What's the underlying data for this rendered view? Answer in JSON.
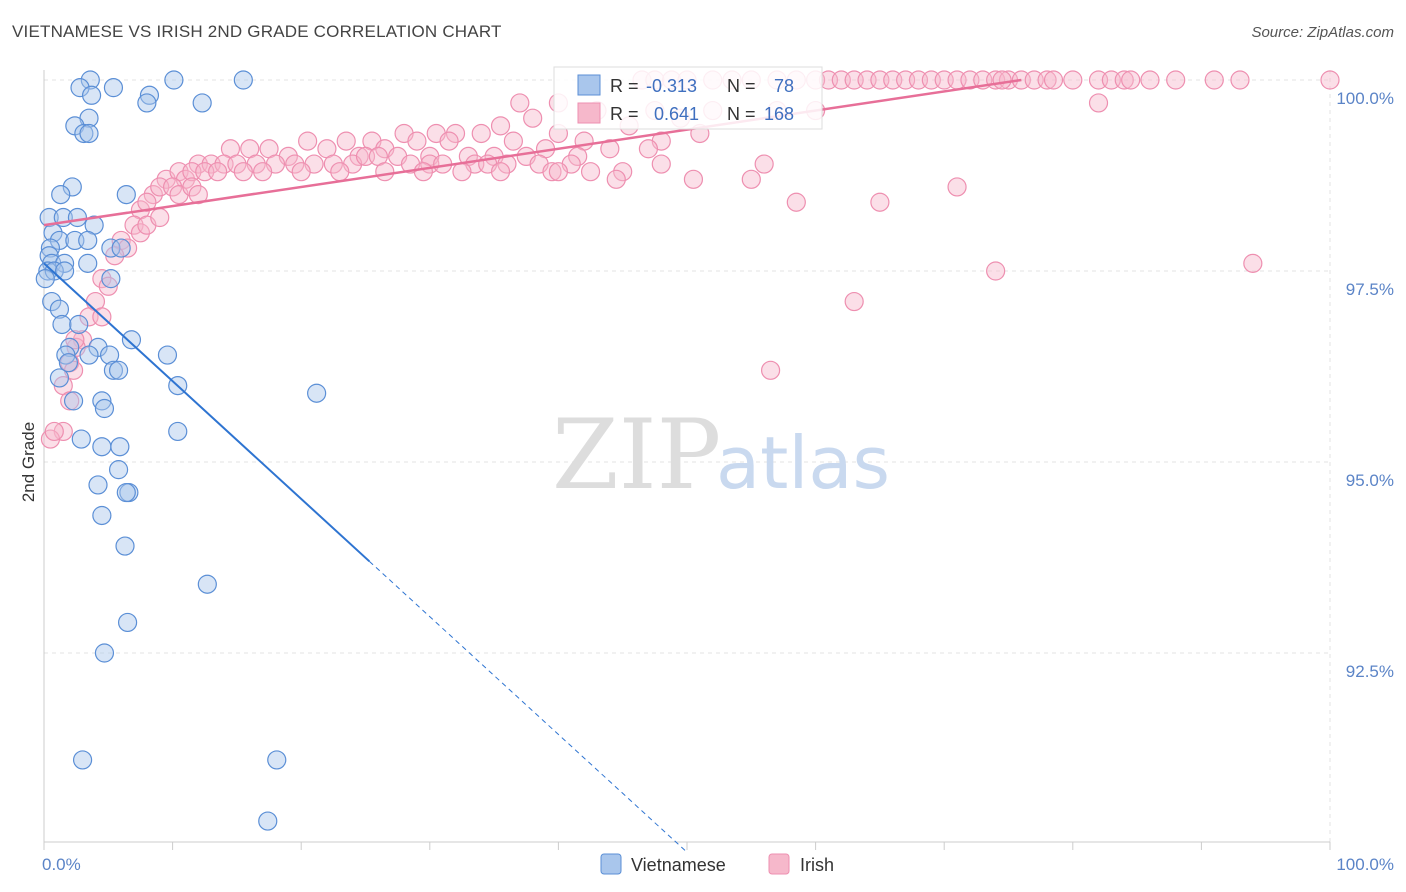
{
  "title": "VIETNAMESE VS IRISH 2ND GRADE CORRELATION CHART",
  "source": "Source: ZipAtlas.com",
  "watermark": {
    "part1": "ZIP",
    "part2": "atlas"
  },
  "colors": {
    "blue_fill": "#a9c6ec",
    "blue_stroke": "#5b8fd6",
    "blue_line": "#2e74d1",
    "pink_fill": "#f6b8cb",
    "pink_stroke": "#ee8fb0",
    "pink_line": "#e76f98",
    "grid": "#e3e3e3",
    "tick_text": "#5b84c7"
  },
  "legend": {
    "rows": [
      {
        "r_label": "R =",
        "r_value": "-0.313",
        "n_label": "N =",
        "n_value": "78"
      },
      {
        "r_label": "R =",
        "r_value": "0.641",
        "n_label": "N =",
        "n_value": "168"
      }
    ]
  },
  "chart_data": {
    "type": "scatter",
    "title": "VIETNAMESE VS IRISH 2ND GRADE CORRELATION CHART",
    "xlabel": "",
    "ylabel": "2nd Grade",
    "xlim": [
      0,
      100
    ],
    "ylim": [
      90.2,
      100.2
    ],
    "x_tick_labels": [
      "0.0%",
      "100.0%"
    ],
    "y_ticks": [
      92.5,
      95.0,
      97.5,
      100.0
    ],
    "y_tick_labels": [
      "92.5%",
      "95.0%",
      "97.5%",
      "100.0%"
    ],
    "legend_placement": "bottom-center",
    "series": [
      {
        "name": "Vietnamese",
        "r": -0.313,
        "n": 78,
        "trend": {
          "x0": 0,
          "y0": 97.6,
          "x1": 25.3,
          "y1": 93.7,
          "dashed_to_x": 50
        },
        "points": [
          [
            3.6,
            100
          ],
          [
            10.1,
            100
          ],
          [
            15.5,
            100
          ],
          [
            2.8,
            99.9
          ],
          [
            5.4,
            99.9
          ],
          [
            8.2,
            99.8
          ],
          [
            8.0,
            99.7
          ],
          [
            3.7,
            99.8
          ],
          [
            12.3,
            99.7
          ],
          [
            3.5,
            99.5
          ],
          [
            2.4,
            99.4
          ],
          [
            3.1,
            99.3
          ],
          [
            3.5,
            99.3
          ],
          [
            2.2,
            98.6
          ],
          [
            1.3,
            98.5
          ],
          [
            6.4,
            98.5
          ],
          [
            0.4,
            98.2
          ],
          [
            1.5,
            98.2
          ],
          [
            2.6,
            98.2
          ],
          [
            3.9,
            98.1
          ],
          [
            0.7,
            98.0
          ],
          [
            1.2,
            97.9
          ],
          [
            2.4,
            97.9
          ],
          [
            3.4,
            97.9
          ],
          [
            0.5,
            97.8
          ],
          [
            5.2,
            97.8
          ],
          [
            6.0,
            97.8
          ],
          [
            0.4,
            97.7
          ],
          [
            0.6,
            97.6
          ],
          [
            1.6,
            97.6
          ],
          [
            3.4,
            97.6
          ],
          [
            0.3,
            97.5
          ],
          [
            0.8,
            97.5
          ],
          [
            1.6,
            97.5
          ],
          [
            0.1,
            97.4
          ],
          [
            5.2,
            97.4
          ],
          [
            0.6,
            97.1
          ],
          [
            1.2,
            97.0
          ],
          [
            1.4,
            96.8
          ],
          [
            2.7,
            96.8
          ],
          [
            6.8,
            96.6
          ],
          [
            2.0,
            96.5
          ],
          [
            4.2,
            96.5
          ],
          [
            1.7,
            96.4
          ],
          [
            3.5,
            96.4
          ],
          [
            5.1,
            96.4
          ],
          [
            9.6,
            96.4
          ],
          [
            1.9,
            96.3
          ],
          [
            5.4,
            96.2
          ],
          [
            5.8,
            96.2
          ],
          [
            1.2,
            96.1
          ],
          [
            10.4,
            96.0
          ],
          [
            21.2,
            95.9
          ],
          [
            2.3,
            95.8
          ],
          [
            4.5,
            95.8
          ],
          [
            4.7,
            95.7
          ],
          [
            10.4,
            95.4
          ],
          [
            2.9,
            95.3
          ],
          [
            4.5,
            95.2
          ],
          [
            5.9,
            95.2
          ],
          [
            5.8,
            94.9
          ],
          [
            4.2,
            94.7
          ],
          [
            6.6,
            94.6
          ],
          [
            6.4,
            94.6
          ],
          [
            4.5,
            94.3
          ],
          [
            6.3,
            93.9
          ],
          [
            12.7,
            93.4
          ],
          [
            6.5,
            92.9
          ],
          [
            4.7,
            92.5
          ],
          [
            3.0,
            91.1
          ],
          [
            18.1,
            91.1
          ],
          [
            17.4,
            90.3
          ]
        ]
      },
      {
        "name": "Irish",
        "r": 0.641,
        "n": 168,
        "trend": {
          "x0": 0,
          "y0": 98.1,
          "x1": 76,
          "y1": 100.0
        },
        "points": [
          [
            46.5,
            100
          ],
          [
            47.5,
            100
          ],
          [
            48.8,
            100
          ],
          [
            50.0,
            100
          ],
          [
            52.0,
            100
          ],
          [
            53.5,
            100
          ],
          [
            55.0,
            100
          ],
          [
            57.0,
            100
          ],
          [
            58.5,
            100
          ],
          [
            60.0,
            100
          ],
          [
            61.0,
            100
          ],
          [
            62.0,
            100
          ],
          [
            63.0,
            100
          ],
          [
            64.0,
            100
          ],
          [
            65.0,
            100
          ],
          [
            66.0,
            100
          ],
          [
            67.0,
            100
          ],
          [
            68.0,
            100
          ],
          [
            69.0,
            100
          ],
          [
            70.0,
            100
          ],
          [
            71.0,
            100
          ],
          [
            72.0,
            100
          ],
          [
            73.0,
            100
          ],
          [
            74.0,
            100
          ],
          [
            75.0,
            100
          ],
          [
            76.0,
            100
          ],
          [
            77.0,
            100
          ],
          [
            78.0,
            100
          ],
          [
            80.0,
            100
          ],
          [
            82.0,
            100
          ],
          [
            83.0,
            100
          ],
          [
            84.0,
            100
          ],
          [
            86.0,
            100
          ],
          [
            88.0,
            100
          ],
          [
            91.0,
            100
          ],
          [
            93.0,
            100
          ],
          [
            100.0,
            100
          ],
          [
            74.5,
            100
          ],
          [
            78.5,
            100
          ],
          [
            84.5,
            100
          ],
          [
            37.0,
            99.7
          ],
          [
            40.0,
            99.7
          ],
          [
            43.0,
            99.6
          ],
          [
            47.5,
            99.6
          ],
          [
            52.0,
            99.6
          ],
          [
            57.0,
            99.6
          ],
          [
            60.0,
            99.6
          ],
          [
            82.0,
            99.7
          ],
          [
            35.5,
            99.4
          ],
          [
            38.0,
            99.5
          ],
          [
            45.5,
            99.4
          ],
          [
            49.5,
            99.5
          ],
          [
            28.0,
            99.3
          ],
          [
            30.5,
            99.3
          ],
          [
            32.0,
            99.3
          ],
          [
            34.0,
            99.3
          ],
          [
            20.5,
            99.2
          ],
          [
            23.5,
            99.2
          ],
          [
            25.5,
            99.2
          ],
          [
            29.0,
            99.2
          ],
          [
            31.5,
            99.2
          ],
          [
            36.5,
            99.2
          ],
          [
            40.0,
            99.3
          ],
          [
            42.0,
            99.2
          ],
          [
            48.0,
            99.2
          ],
          [
            51.0,
            99.3
          ],
          [
            14.5,
            99.1
          ],
          [
            16.0,
            99.1
          ],
          [
            17.5,
            99.1
          ],
          [
            19.0,
            99.0
          ],
          [
            22.0,
            99.1
          ],
          [
            24.5,
            99.0
          ],
          [
            26.5,
            99.1
          ],
          [
            27.5,
            99.0
          ],
          [
            30.0,
            99.0
          ],
          [
            33.0,
            99.0
          ],
          [
            35.0,
            99.0
          ],
          [
            37.5,
            99.0
          ],
          [
            39.0,
            99.1
          ],
          [
            41.5,
            99.0
          ],
          [
            44.0,
            99.1
          ],
          [
            47.0,
            99.1
          ],
          [
            12.0,
            98.9
          ],
          [
            13.0,
            98.9
          ],
          [
            14.0,
            98.9
          ],
          [
            15.0,
            98.9
          ],
          [
            16.5,
            98.9
          ],
          [
            18.0,
            98.9
          ],
          [
            19.5,
            98.9
          ],
          [
            21.0,
            98.9
          ],
          [
            22.5,
            98.9
          ],
          [
            24.0,
            98.9
          ],
          [
            25.0,
            99.0
          ],
          [
            26.0,
            99.0
          ],
          [
            28.5,
            98.9
          ],
          [
            30.0,
            98.9
          ],
          [
            31.0,
            98.9
          ],
          [
            33.5,
            98.9
          ],
          [
            34.5,
            98.9
          ],
          [
            36.0,
            98.9
          ],
          [
            38.5,
            98.9
          ],
          [
            41.0,
            98.9
          ],
          [
            9.5,
            98.7
          ],
          [
            10.5,
            98.8
          ],
          [
            11.0,
            98.7
          ],
          [
            11.5,
            98.8
          ],
          [
            12.5,
            98.8
          ],
          [
            13.5,
            98.8
          ],
          [
            15.5,
            98.8
          ],
          [
            17.0,
            98.8
          ],
          [
            20.0,
            98.8
          ],
          [
            23.0,
            98.8
          ],
          [
            26.5,
            98.8
          ],
          [
            29.5,
            98.8
          ],
          [
            32.5,
            98.8
          ],
          [
            35.5,
            98.8
          ],
          [
            39.5,
            98.8
          ],
          [
            42.5,
            98.8
          ],
          [
            45.0,
            98.8
          ],
          [
            50.5,
            98.7
          ],
          [
            8.5,
            98.5
          ],
          [
            9.0,
            98.6
          ],
          [
            10.0,
            98.6
          ],
          [
            10.5,
            98.5
          ],
          [
            11.5,
            98.6
          ],
          [
            7.5,
            98.3
          ],
          [
            8.0,
            98.4
          ],
          [
            12.0,
            98.5
          ],
          [
            7.0,
            98.1
          ],
          [
            7.5,
            98.0
          ],
          [
            8.0,
            98.1
          ],
          [
            6.0,
            97.9
          ],
          [
            6.5,
            97.8
          ],
          [
            5.5,
            97.7
          ],
          [
            9.0,
            98.2
          ],
          [
            4.5,
            97.4
          ],
          [
            5.0,
            97.3
          ],
          [
            4.0,
            97.1
          ],
          [
            3.5,
            96.9
          ],
          [
            4.5,
            96.9
          ],
          [
            3.0,
            96.6
          ],
          [
            2.5,
            96.5
          ],
          [
            2.0,
            96.3
          ],
          [
            1.5,
            96.0
          ],
          [
            2.0,
            95.8
          ],
          [
            1.5,
            95.4
          ],
          [
            0.5,
            95.3
          ],
          [
            0.8,
            95.4
          ],
          [
            2.4,
            96.6
          ],
          [
            2.3,
            96.2
          ],
          [
            40.0,
            98.8
          ],
          [
            44.5,
            98.7
          ],
          [
            48.0,
            98.9
          ],
          [
            55.0,
            98.7
          ],
          [
            58.5,
            98.4
          ],
          [
            65.0,
            98.4
          ],
          [
            71.0,
            98.6
          ],
          [
            56.0,
            98.9
          ],
          [
            63.0,
            97.1
          ],
          [
            56.5,
            96.2
          ],
          [
            74.0,
            97.5
          ],
          [
            94.0,
            97.6
          ]
        ]
      }
    ]
  },
  "bottom_legend": [
    {
      "label": "Vietnamese"
    },
    {
      "label": "Irish"
    }
  ]
}
